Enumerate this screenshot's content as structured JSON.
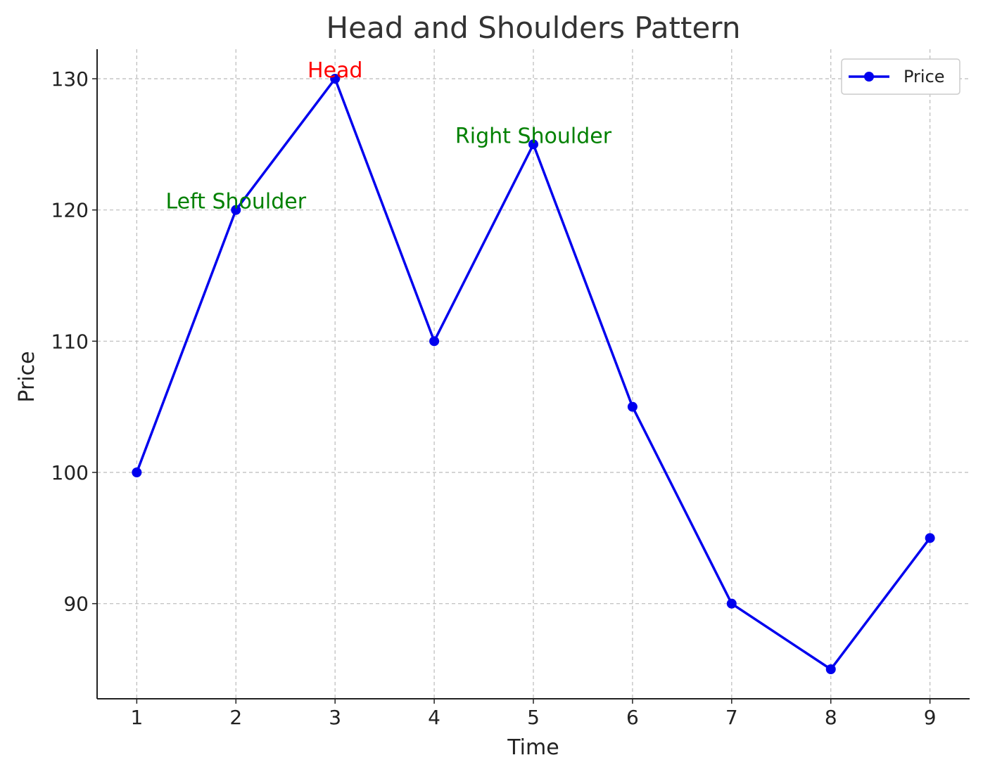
{
  "chart_data": {
    "type": "line",
    "title": "Head and Shoulders Pattern",
    "xlabel": "Time",
    "ylabel": "Price",
    "x": [
      1,
      2,
      3,
      4,
      5,
      6,
      7,
      8,
      9
    ],
    "series": [
      {
        "name": "Price",
        "color": "#0000ee",
        "values": [
          100,
          120,
          130,
          110,
          125,
          105,
          90,
          85,
          95
        ]
      }
    ],
    "xlim": [
      0.6,
      9.4
    ],
    "xticks": [
      1,
      2,
      3,
      4,
      5,
      6,
      7,
      8,
      9
    ],
    "ylim": [
      82.75,
      132.25
    ],
    "yticks": [
      90,
      100,
      110,
      120,
      130
    ],
    "grid": true,
    "legend": "upper right",
    "annotations": [
      {
        "text": "Left Shoulder",
        "x": 2,
        "y": 120,
        "color": "#008000"
      },
      {
        "text": "Head",
        "x": 3,
        "y": 130,
        "color": "#ff0000"
      },
      {
        "text": "Right Shoulder",
        "x": 5,
        "y": 125,
        "color": "#008000"
      }
    ]
  }
}
